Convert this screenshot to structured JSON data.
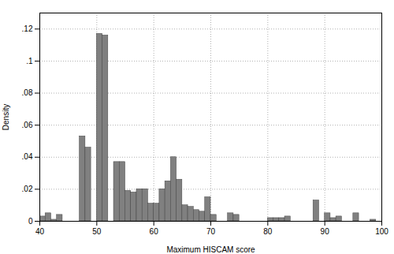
{
  "chart_data": {
    "type": "histogram",
    "bins": [
      40,
      41,
      42,
      43,
      44,
      45,
      46,
      47,
      48,
      49,
      50,
      51,
      52,
      53,
      54,
      55,
      56,
      57,
      58,
      59,
      60,
      61,
      62,
      63,
      64,
      65,
      66,
      67,
      68,
      69,
      70,
      71,
      72,
      73,
      74,
      75,
      76,
      77,
      78,
      79,
      80,
      81,
      82,
      83,
      84,
      85,
      86,
      87,
      88,
      89,
      90,
      91,
      92,
      93,
      94,
      95,
      96,
      97,
      98,
      99,
      100
    ],
    "values": [
      0.003,
      0.005,
      0.001,
      0.004,
      0.0,
      0.0,
      0.0,
      0.053,
      0.046,
      0.0,
      0.117,
      0.116,
      0.0,
      0.037,
      0.037,
      0.019,
      0.018,
      0.02,
      0.02,
      0.011,
      0.011,
      0.02,
      0.025,
      0.04,
      0.026,
      0.01,
      0.009,
      0.007,
      0.006,
      0.015,
      0.004,
      0.0,
      0.0,
      0.005,
      0.004,
      0.0,
      0.0,
      0.0,
      0.0,
      0.0,
      0.002,
      0.002,
      0.002,
      0.003,
      0.0,
      0.0,
      0.0,
      0.0,
      0.013,
      0.0,
      0.005,
      0.002,
      0.003,
      0.0,
      0.0,
      0.005,
      0.0,
      0.0,
      0.001,
      0.0
    ],
    "color": "#808080",
    "xlabel": "Maximum HISCAM score",
    "ylabel": "Density",
    "xlim": [
      40,
      100
    ],
    "ylim": [
      0,
      0.13
    ],
    "xticks": [
      40,
      50,
      60,
      70,
      80,
      90,
      100
    ],
    "yticks": [
      0,
      {
        "value": 0.02,
        "label": ".02"
      },
      {
        "value": 0.04,
        "label": ".04"
      },
      {
        "value": 0.06,
        "label": ".06"
      },
      {
        "value": 0.08,
        "label": ".08"
      },
      {
        "value": 0.1,
        "label": ".1"
      },
      {
        "value": 0.12,
        "label": ".12"
      }
    ],
    "grid": true
  }
}
